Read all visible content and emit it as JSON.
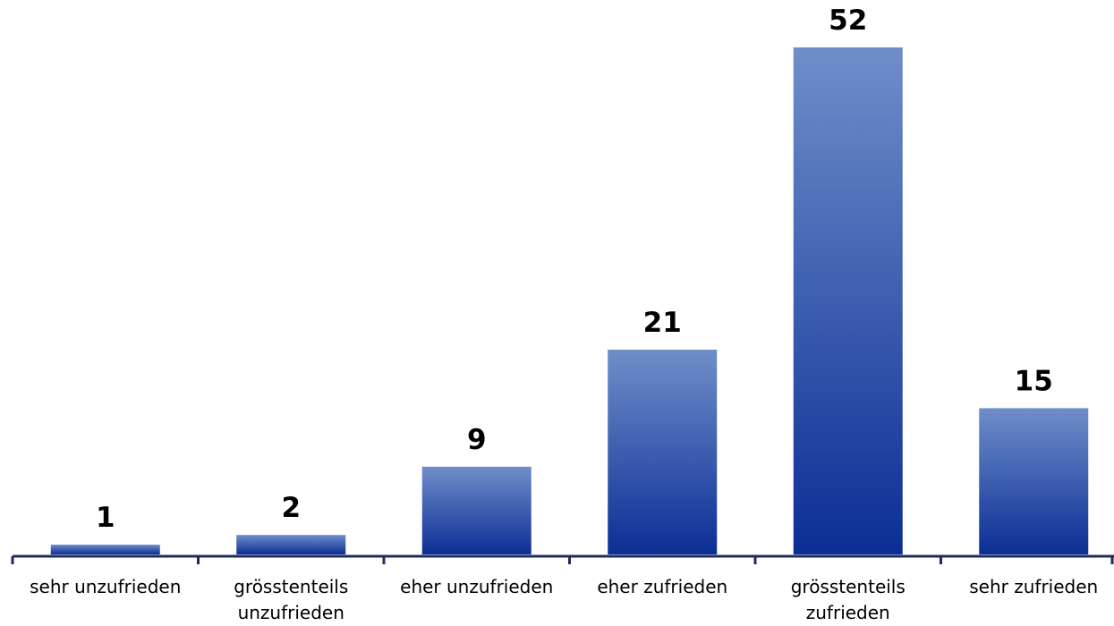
{
  "chart_data": {
    "type": "bar",
    "categories": [
      "sehr unzufrieden",
      "grösstenteils unzufrieden",
      "eher unzufrieden",
      "eher zufrieden",
      "grösstenteils zufrieden",
      "sehr zufrieden"
    ],
    "values": [
      1,
      2,
      9,
      21,
      52,
      15
    ]
  }
}
